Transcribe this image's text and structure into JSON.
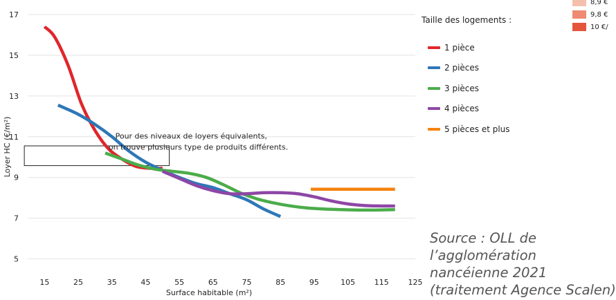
{
  "chart_data": {
    "type": "line",
    "title": "",
    "xlabel": "Surface habitable (m²)",
    "ylabel": "Loyer HC (€/m²)",
    "xlim": [
      10,
      125
    ],
    "ylim": [
      4,
      17
    ],
    "xticks": [
      15,
      25,
      35,
      45,
      55,
      65,
      75,
      85,
      95,
      105,
      115,
      125
    ],
    "yticks": [
      5,
      7,
      9,
      11,
      13,
      15,
      17
    ],
    "grid": "horizontal",
    "legend_title": "Taille des logements :",
    "legend_position": "right",
    "series": [
      {
        "name": "1 pièce",
        "color": "#e0262c",
        "points": [
          [
            15,
            16.4
          ],
          [
            18,
            15.9
          ],
          [
            22,
            14.5
          ],
          [
            26,
            12.6
          ],
          [
            30,
            11.3
          ],
          [
            34,
            10.4
          ],
          [
            38,
            9.9
          ],
          [
            42,
            9.55
          ],
          [
            46,
            9.45
          ],
          [
            50,
            9.45
          ]
        ]
      },
      {
        "name": "2 pièces",
        "color": "#2e77b7",
        "points": [
          [
            19,
            12.55
          ],
          [
            25,
            12.1
          ],
          [
            30,
            11.6
          ],
          [
            35,
            11.0
          ],
          [
            40,
            10.3
          ],
          [
            45,
            9.75
          ],
          [
            50,
            9.35
          ],
          [
            55,
            9.0
          ],
          [
            60,
            8.7
          ],
          [
            65,
            8.5
          ],
          [
            70,
            8.2
          ],
          [
            75,
            7.9
          ],
          [
            80,
            7.45
          ],
          [
            85,
            7.08
          ]
        ]
      },
      {
        "name": "3 pièces",
        "color": "#4bac4a",
        "points": [
          [
            33,
            10.2
          ],
          [
            38,
            9.9
          ],
          [
            43,
            9.6
          ],
          [
            48,
            9.4
          ],
          [
            53,
            9.3
          ],
          [
            58,
            9.2
          ],
          [
            63,
            9.0
          ],
          [
            68,
            8.65
          ],
          [
            73,
            8.25
          ],
          [
            78,
            7.95
          ],
          [
            83,
            7.75
          ],
          [
            88,
            7.6
          ],
          [
            93,
            7.5
          ],
          [
            98,
            7.45
          ],
          [
            103,
            7.42
          ],
          [
            108,
            7.4
          ],
          [
            113,
            7.4
          ],
          [
            119,
            7.42
          ]
        ]
      },
      {
        "name": "4 pièces",
        "color": "#8e46a6",
        "points": [
          [
            50,
            9.3
          ],
          [
            55,
            8.95
          ],
          [
            60,
            8.6
          ],
          [
            65,
            8.35
          ],
          [
            70,
            8.2
          ],
          [
            75,
            8.2
          ],
          [
            80,
            8.25
          ],
          [
            85,
            8.25
          ],
          [
            90,
            8.2
          ],
          [
            95,
            8.05
          ],
          [
            100,
            7.85
          ],
          [
            105,
            7.7
          ],
          [
            110,
            7.62
          ],
          [
            115,
            7.6
          ],
          [
            119,
            7.6
          ]
        ]
      },
      {
        "name": "5 pièces et plus",
        "color": "#f5820d",
        "points": [
          [
            94,
            8.42
          ],
          [
            119,
            8.42
          ]
        ]
      }
    ],
    "annotations": [
      {
        "text": "Pour des niveaux de loyers équivalents,",
        "at": [
          36,
          10.9
        ]
      },
      {
        "text": "on trouve plusieurs type de produits différents.",
        "at": [
          34,
          10.37
        ]
      }
    ],
    "highlight_box": {
      "x": [
        9,
        52
      ],
      "y": [
        9.58,
        10.55
      ]
    }
  },
  "legend": {
    "title": "Taille des logements :",
    "items": [
      {
        "label": "1 pièce",
        "color": "#e0262c"
      },
      {
        "label": "2 pièces",
        "color": "#2e77b7"
      },
      {
        "label": "3 pièces",
        "color": "#4bac4a"
      },
      {
        "label": "4 pièces",
        "color": "#8e46a6"
      },
      {
        "label": "5 pièces et plus",
        "color": "#f5820d"
      }
    ]
  },
  "scale_legend": [
    {
      "label": "8,9 €",
      "color": "#f5bfae"
    },
    {
      "label": "9,8 €",
      "color": "#ee8b72"
    },
    {
      "label": "10 €/",
      "color": "#e4553c"
    }
  ],
  "source_lines": [
    "Source : OLL de",
    "l’agglomération",
    "nancéienne 2021",
    "(traitement Agence Scalen)"
  ]
}
